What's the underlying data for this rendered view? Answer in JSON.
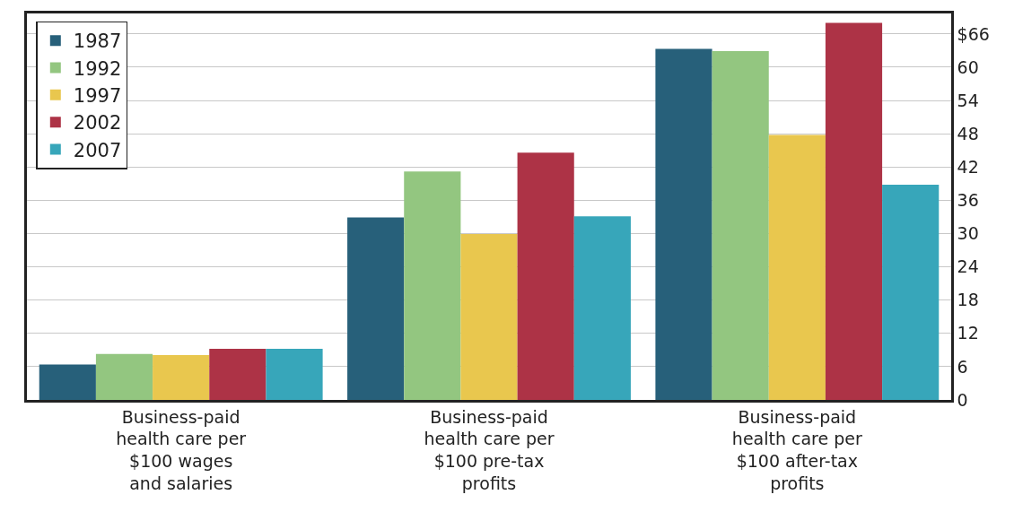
{
  "chart_data": {
    "type": "bar",
    "categories": [
      "Business-paid\nhealth care per\n$100 wages\nand salaries",
      "Business-paid\nhealth care per\n$100 pre-tax\nprofits",
      "Business-paid\nhealth care per\n$100 after-tax\nprofits"
    ],
    "series": [
      {
        "name": "1987",
        "color": "#27607a",
        "values": [
          6.4,
          32.9,
          63.3
        ]
      },
      {
        "name": "1992",
        "color": "#93c680",
        "values": [
          8.3,
          41.2,
          62.9
        ]
      },
      {
        "name": "1997",
        "color": "#e9c74e",
        "values": [
          8.1,
          29.9,
          47.8
        ]
      },
      {
        "name": "2002",
        "color": "#ad3346",
        "values": [
          9.2,
          44.6,
          68.0
        ]
      },
      {
        "name": "2007",
        "color": "#37a6ba",
        "values": [
          9.2,
          33.1,
          38.8
        ]
      }
    ],
    "ylim": [
      0,
      69.7
    ],
    "yticks": [
      0,
      6,
      12,
      18,
      24,
      30,
      36,
      42,
      48,
      54,
      60,
      {
        "value": 66,
        "label": "$66"
      }
    ],
    "grid": "y",
    "legend": "top left"
  }
}
